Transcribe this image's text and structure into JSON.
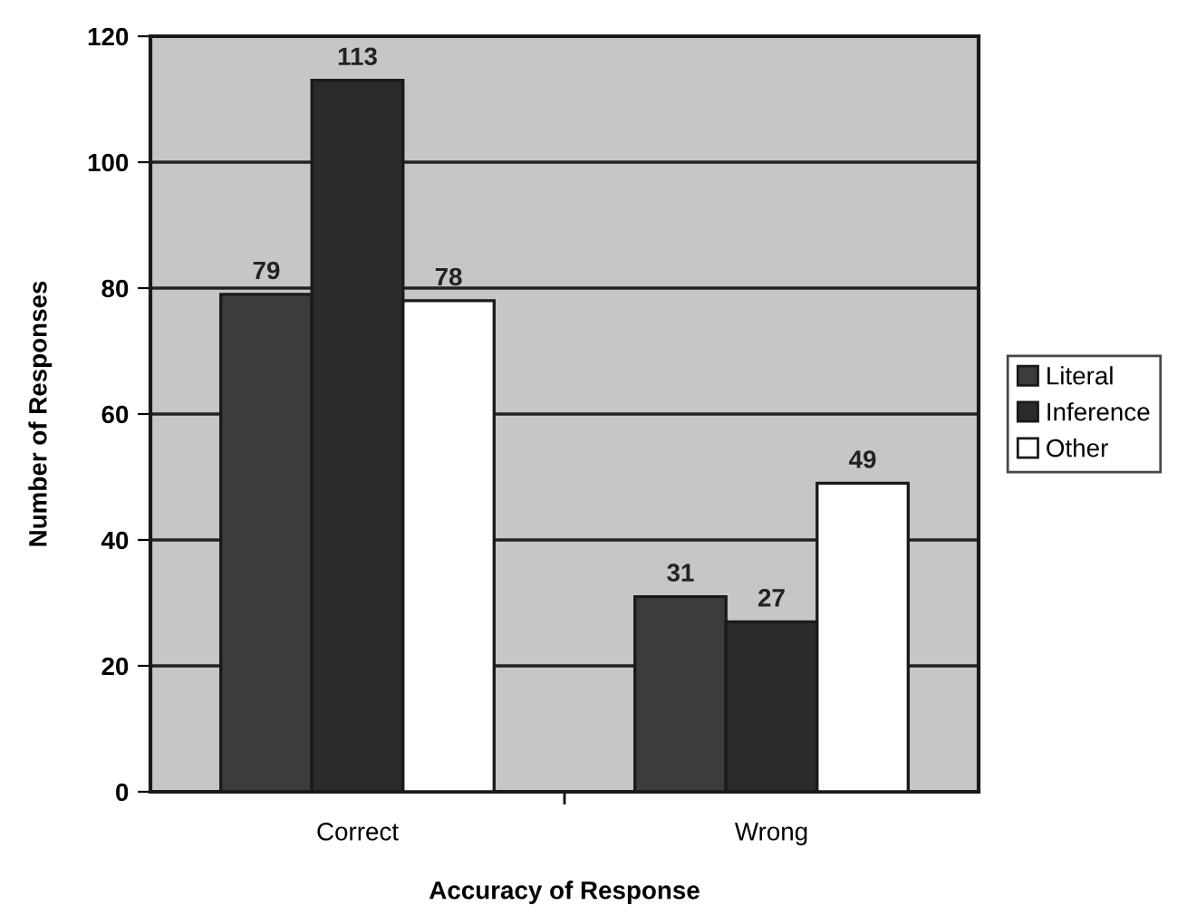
{
  "chart_data": {
    "type": "bar",
    "xlabel": "Accuracy of Response",
    "ylabel": "Number of Responses",
    "categories": [
      "Correct",
      "Wrong"
    ],
    "series": [
      {
        "name": "Literal",
        "color": "#3c3c3c",
        "values": [
          79,
          31
        ]
      },
      {
        "name": "Inference",
        "color": "#2b2b2b",
        "values": [
          113,
          27
        ]
      },
      {
        "name": "Other",
        "color": "#ffffff",
        "values": [
          78,
          49
        ]
      }
    ],
    "ylim": [
      0,
      120
    ],
    "yticks": [
      0,
      20,
      40,
      60,
      80,
      100,
      120
    ],
    "grid": "y",
    "legend": "right",
    "data_labels": true
  }
}
